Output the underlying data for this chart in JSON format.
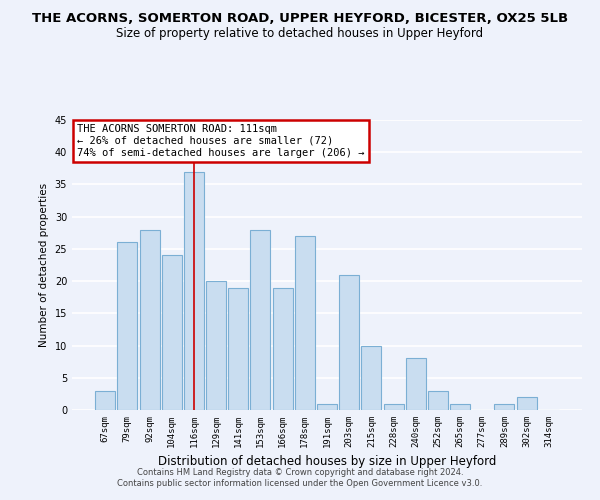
{
  "title": "THE ACORNS, SOMERTON ROAD, UPPER HEYFORD, BICESTER, OX25 5LB",
  "subtitle": "Size of property relative to detached houses in Upper Heyford",
  "xlabel": "Distribution of detached houses by size in Upper Heyford",
  "ylabel": "Number of detached properties",
  "categories": [
    "67sqm",
    "79sqm",
    "92sqm",
    "104sqm",
    "116sqm",
    "129sqm",
    "141sqm",
    "153sqm",
    "166sqm",
    "178sqm",
    "191sqm",
    "203sqm",
    "215sqm",
    "228sqm",
    "240sqm",
    "252sqm",
    "265sqm",
    "277sqm",
    "289sqm",
    "302sqm",
    "314sqm"
  ],
  "values": [
    3,
    26,
    28,
    24,
    37,
    20,
    19,
    28,
    19,
    27,
    1,
    21,
    10,
    1,
    8,
    3,
    1,
    0,
    1,
    2,
    0
  ],
  "bar_color": "#c9ddf0",
  "bar_edge_color": "#7bafd4",
  "ylim": [
    0,
    45
  ],
  "yticks": [
    0,
    5,
    10,
    15,
    20,
    25,
    30,
    35,
    40,
    45
  ],
  "annotation_title": "THE ACORNS SOMERTON ROAD: 111sqm",
  "annotation_line1": "← 26% of detached houses are smaller (72)",
  "annotation_line2": "74% of semi-detached houses are larger (206) →",
  "annotation_box_color": "#ffffff",
  "annotation_box_edge": "#cc0000",
  "subject_bar_index": 4,
  "subject_line_color": "#cc0000",
  "background_color": "#eef2fb",
  "footer1": "Contains HM Land Registry data © Crown copyright and database right 2024.",
  "footer2": "Contains public sector information licensed under the Open Government Licence v3.0.",
  "title_fontsize": 9.5,
  "subtitle_fontsize": 8.5
}
